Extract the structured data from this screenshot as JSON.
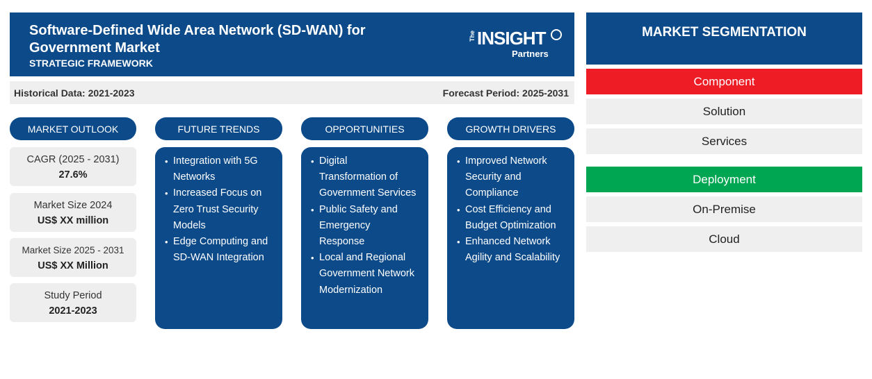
{
  "header": {
    "title": "Software-Defined Wide Area Network (SD-WAN) for Government Market",
    "subtitle": "STRATEGIC FRAMEWORK",
    "logo": {
      "the": "The",
      "main": "INSIGHT",
      "sub": "Partners"
    }
  },
  "periods": {
    "historical": "Historical Data: 2021-2023",
    "forecast": "Forecast Period: 2025-2031"
  },
  "market_outlook": {
    "heading": "MARKET OUTLOOK",
    "stats": [
      {
        "label": "CAGR (2025 - 2031)",
        "value": "27.6%"
      },
      {
        "label": "Market Size 2024",
        "value": "US$ XX million"
      },
      {
        "label": "Market Size 2025 - 2031",
        "value": "US$ XX Million"
      },
      {
        "label": "Study Period",
        "value": "2021-2023"
      }
    ]
  },
  "future_trends": {
    "heading": "FUTURE TRENDS",
    "items": [
      [
        "Integration with 5G",
        "Networks"
      ],
      [
        "Increased Focus on",
        "Zero Trust Security",
        "Models"
      ],
      [
        "Edge Computing and",
        "SD-WAN Integration"
      ]
    ]
  },
  "opportunities": {
    "heading": "OPPORTUNITIES",
    "items": [
      [
        "Digital",
        "Transformation of",
        "Government Services"
      ],
      [
        "Public Safety and",
        "Emergency",
        "Response"
      ],
      [
        "Local and Regional",
        "Government Network",
        "Modernization"
      ]
    ]
  },
  "growth_drivers": {
    "heading": "GROWTH DRIVERS",
    "items": [
      [
        "Improved Network",
        "Security and",
        "Compliance"
      ],
      [
        "Cost Efficiency and",
        "Budget Optimization"
      ],
      [
        "Enhanced Network",
        "Agility and Scalability"
      ]
    ]
  },
  "segmentation": {
    "heading": "MARKET SEGMENTATION",
    "groups": [
      {
        "name": "Component",
        "color": "#ee1c25",
        "items": [
          "Solution",
          "Services"
        ]
      },
      {
        "name": "Deployment",
        "color": "#00a651",
        "items": [
          "On-Premise",
          "Cloud"
        ]
      }
    ]
  },
  "colors": {
    "primary": "#0c4a8a",
    "panel": "#efefef"
  }
}
